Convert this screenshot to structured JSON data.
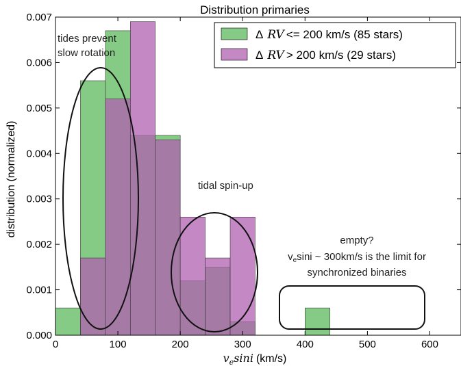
{
  "chart_data": {
    "type": "histogram",
    "title": "Distribution primaries",
    "xlabel_math": "v",
    "xlabel_sub": "e",
    "xlabel_math_rest": "sini",
    "xlabel_unit": "(km/s)",
    "ylabel": "distribution (normalized)",
    "xlim": [
      0,
      650
    ],
    "ylim": [
      0,
      0.007
    ],
    "xticks": [
      "0",
      "100",
      "200",
      "300",
      "400",
      "500",
      "600"
    ],
    "xtick_values": [
      0,
      100,
      200,
      300,
      400,
      500,
      600
    ],
    "yticks": [
      "0.000",
      "0.001",
      "0.002",
      "0.003",
      "0.004",
      "0.005",
      "0.006",
      "0.007"
    ],
    "ytick_values": [
      0,
      0.001,
      0.002,
      0.003,
      0.004,
      0.005,
      0.006,
      0.007
    ],
    "legend_position": "top-right",
    "bin_edges": [
      0,
      40,
      80,
      120,
      160,
      200,
      240,
      280,
      320,
      360,
      400,
      440,
      480,
      520,
      560,
      600,
      640
    ],
    "series": [
      {
        "name_prefix": "Δ",
        "name_math": "RV",
        "name_rest": "<= 200 km/s (85 stars)",
        "color": "#5cb85c",
        "values": [
          0.0006,
          0.0056,
          0.0067,
          0.0044,
          0.0044,
          0.0012,
          0.0015,
          0.0003,
          0,
          0,
          0.0006,
          0,
          0,
          0,
          0,
          0
        ]
      },
      {
        "name_prefix": "Δ",
        "name_math": "RV",
        "name_rest": "> 200 km/s (29 stars)",
        "color": "#b060b0",
        "values": [
          0,
          0.0017,
          0.0052,
          0.0069,
          0.0043,
          0.0026,
          0.0017,
          0.0026,
          0,
          0,
          0,
          0,
          0,
          0,
          0,
          0
        ]
      }
    ],
    "annotations": {
      "tides_line1": "tides prevent",
      "tides_line2": "slow rotation",
      "spinup": "tidal spin-up",
      "empty_line1": "empty?",
      "empty_line2_sub": "e",
      "empty_line2_pre": "v",
      "empty_line2_rest": "sini ~ 300km/s is the limit for",
      "empty_line3": "synchronized binaries"
    }
  }
}
